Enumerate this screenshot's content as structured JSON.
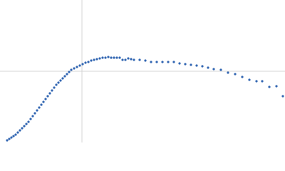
{
  "chart_data": {
    "type": "scatter",
    "color": "#3266b2",
    "x": [
      10,
      13,
      16,
      19,
      22,
      25,
      28,
      31,
      34,
      37,
      40,
      43,
      46,
      49,
      52,
      55,
      58,
      61,
      64,
      67,
      70,
      73,
      76,
      79,
      82,
      85,
      88,
      91,
      94,
      97,
      100,
      104,
      108,
      112,
      116,
      120,
      124,
      128,
      132,
      136,
      140,
      144,
      148,
      152,
      156,
      160,
      164,
      168,
      172,
      176,
      180,
      184,
      188,
      196,
      204,
      212,
      220,
      228,
      236,
      244,
      252,
      260,
      268,
      276,
      284,
      292,
      300,
      310,
      320,
      330,
      340,
      350,
      360,
      368,
      378,
      388,
      397
    ],
    "values": [
      -97,
      -95,
      -93,
      -91,
      -89,
      -86,
      -83,
      -80,
      -77,
      -74,
      -71,
      -67,
      -63,
      -59,
      -55,
      -51,
      -47,
      -43,
      -39,
      -35,
      -31,
      -27,
      -23,
      -19,
      -16,
      -13,
      -10,
      -7,
      -4,
      -1,
      2,
      4,
      6,
      8,
      10,
      12,
      13,
      15,
      16,
      17,
      18,
      19,
      19,
      20,
      19,
      19,
      19,
      19,
      16,
      16,
      18,
      17,
      16,
      16,
      15,
      13,
      13,
      13,
      13,
      13,
      11,
      10,
      9,
      8,
      7,
      5,
      3,
      2,
      -2,
      -4,
      -8,
      -12,
      -14,
      -14,
      -22,
      -21,
      -35
    ],
    "xlim": [
      0,
      400
    ],
    "ylim": [
      -100,
      100
    ],
    "xticks": [
      115
    ],
    "yticks": [
      0
    ],
    "grid": true
  }
}
